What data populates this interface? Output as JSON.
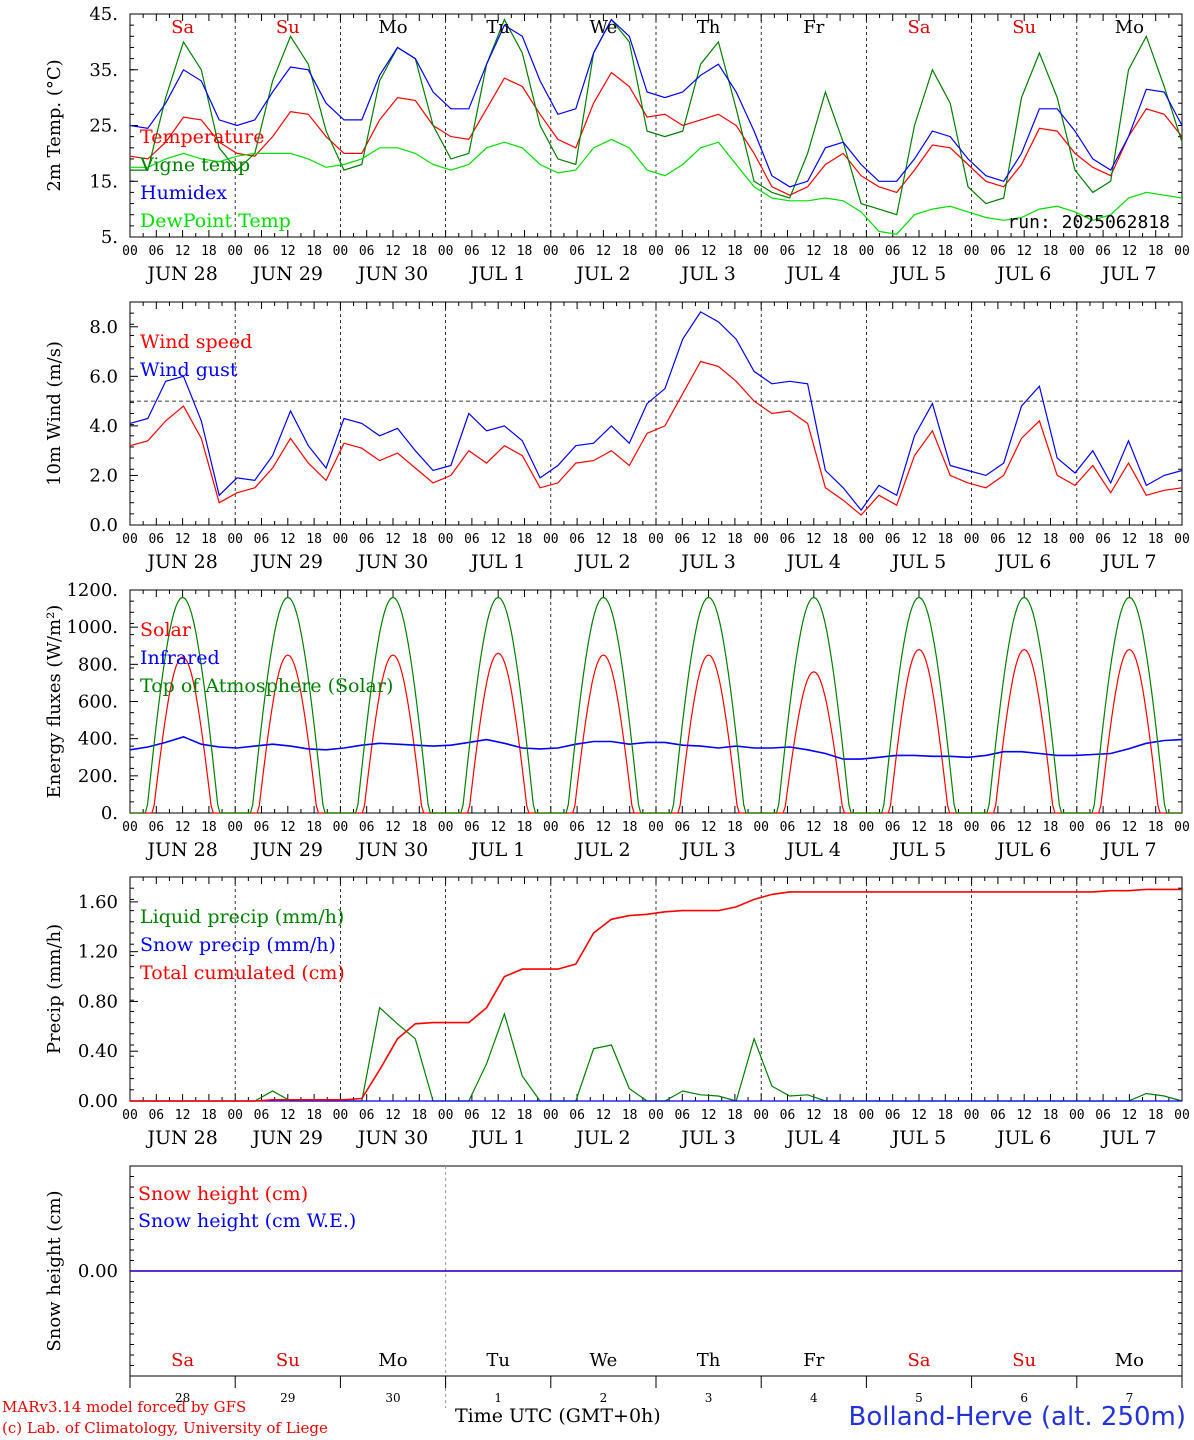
{
  "run_label": "run: 2025062818",
  "weekdays": [
    {
      "label": "Sa",
      "color": "#e00000"
    },
    {
      "label": "Su",
      "color": "#e00000"
    },
    {
      "label": "Mo",
      "color": "#000000"
    },
    {
      "label": "Tu",
      "color": "#000000"
    },
    {
      "label": "We",
      "color": "#000000"
    },
    {
      "label": "Th",
      "color": "#000000"
    },
    {
      "label": "Fr",
      "color": "#000000"
    },
    {
      "label": "Sa",
      "color": "#e00000"
    },
    {
      "label": "Su",
      "color": "#e00000"
    },
    {
      "label": "Mo",
      "color": "#000000"
    }
  ],
  "date_labels": [
    "JUN 28",
    "JUN 29",
    "JUN 30",
    "JUL  1",
    "JUL  2",
    "JUL  3",
    "JUL  4",
    "JUL  5",
    "JUL  6",
    "JUL  7"
  ],
  "hour_labels": [
    "00",
    "06",
    "12",
    "18"
  ],
  "bottom_day_numbers": [
    "28",
    "29",
    "30",
    "1",
    "2",
    "3",
    "4",
    "5",
    "6",
    "7"
  ],
  "footer": {
    "model": "MARv3.14 model forced by GFS",
    "lab": "(c) Lab. of Climatology, University of Liege",
    "xaxis": "Time UTC (GMT+0h)",
    "station": "Bolland-Herve (alt. 250m)"
  },
  "colors": {
    "red": "#ff0000",
    "green": "#008000",
    "blue": "#0000ff",
    "lightgreen": "#00e000"
  },
  "chart_data": [
    {
      "type": "line",
      "ylabel": "2m Temp. (°C)",
      "yticks": [
        "45.",
        "35.",
        "25.",
        "15.",
        "5."
      ],
      "ylim": [
        5,
        45
      ],
      "x_start": "2025-06-28 00:00",
      "x_step_hours": 6,
      "series": [
        {
          "name": "Temperature",
          "color": "#ff0000",
          "values": [
            19.5,
            19,
            22,
            26.5,
            26,
            22,
            20,
            19.5,
            23,
            27.5,
            27,
            23,
            20,
            20,
            26,
            30,
            29.5,
            25,
            23,
            22.5,
            28,
            33.5,
            32,
            27,
            22.5,
            21,
            29,
            34.5,
            32,
            26.5,
            27,
            25,
            26,
            27,
            25,
            20,
            14,
            12.5,
            14,
            18,
            20,
            16,
            14,
            13,
            17,
            21.5,
            21,
            18,
            15,
            14,
            18,
            24.5,
            24,
            20,
            17.5,
            16,
            23,
            28,
            27,
            23
          ]
        },
        {
          "name": "Vigne temp",
          "color": "#008000",
          "values": [
            17,
            17,
            30,
            40,
            35,
            21,
            17,
            20,
            33,
            41,
            36,
            24,
            17,
            18,
            33,
            39,
            37,
            25,
            19,
            20,
            36,
            44,
            38,
            25,
            19,
            18,
            38,
            44,
            40,
            24,
            23,
            24,
            36,
            40,
            28,
            15,
            13,
            12,
            20,
            31,
            22,
            11,
            10,
            9,
            25,
            35,
            29,
            14,
            11,
            12,
            30,
            38,
            30,
            17,
            13,
            15,
            35,
            41,
            32,
            22
          ]
        },
        {
          "name": "Humidex",
          "color": "#0000ff",
          "values": [
            25,
            24.5,
            29,
            35,
            33,
            26,
            25,
            26,
            31,
            35.5,
            35,
            29,
            26,
            26,
            34,
            39,
            37,
            31,
            28,
            28,
            36,
            43,
            41,
            33,
            27,
            28,
            38,
            44,
            41,
            31,
            30,
            31,
            34,
            36,
            31,
            24,
            16,
            14,
            15,
            21,
            22,
            18,
            15,
            15,
            19,
            24,
            23,
            19,
            16,
            15,
            20,
            28,
            28,
            24,
            19,
            17,
            23,
            31.5,
            31,
            25
          ]
        },
        {
          "name": "DewPoint Temp",
          "color": "#00e000",
          "values": [
            17.5,
            17.5,
            19,
            20,
            19,
            18.5,
            19.5,
            20,
            20,
            20,
            19,
            17.5,
            18,
            19,
            21,
            21,
            20,
            18,
            17,
            18,
            21,
            22,
            21,
            18,
            16.5,
            17,
            21,
            22.5,
            21,
            17,
            16,
            18,
            21,
            22,
            18,
            14,
            12,
            11.5,
            11.5,
            12,
            11.5,
            9.5,
            6,
            5.5,
            9,
            10,
            10.5,
            9.5,
            8.5,
            8,
            8.5,
            10,
            10.5,
            9.5,
            8,
            9,
            12,
            13,
            12.5,
            12
          ]
        }
      ]
    },
    {
      "type": "line",
      "ylabel": "10m Wind (m/s)",
      "yticks": [
        "8.0",
        "6.0",
        "4.0",
        "2.0",
        "0.0"
      ],
      "ylim": [
        0,
        9
      ],
      "reference_line": 5,
      "series": [
        {
          "name": "Wind speed",
          "color": "#ff0000",
          "values": [
            3.2,
            3.4,
            4.2,
            4.8,
            3.5,
            0.9,
            1.3,
            1.5,
            2.3,
            3.5,
            2.5,
            1.8,
            3.3,
            3.1,
            2.6,
            2.9,
            2.3,
            1.7,
            2.0,
            3.0,
            2.5,
            3.2,
            2.8,
            1.5,
            1.7,
            2.5,
            2.6,
            3.0,
            2.4,
            3.7,
            4.0,
            5.3,
            6.6,
            6.4,
            5.8,
            5.0,
            4.5,
            4.6,
            4.1,
            1.5,
            1.0,
            0.4,
            1.2,
            0.8,
            2.8,
            3.8,
            2.0,
            1.7,
            1.5,
            2.0,
            3.5,
            4.2,
            2.0,
            1.6,
            2.4,
            1.3,
            2.5,
            1.2,
            1.4,
            1.5
          ]
        },
        {
          "name": "Wind gust",
          "color": "#0000ff",
          "values": [
            4.1,
            4.3,
            5.8,
            6.0,
            4.2,
            1.2,
            1.9,
            1.8,
            2.8,
            4.6,
            3.2,
            2.3,
            4.3,
            4.1,
            3.6,
            3.9,
            3.0,
            2.2,
            2.4,
            4.5,
            3.8,
            4.0,
            3.4,
            1.9,
            2.4,
            3.2,
            3.3,
            4.0,
            3.3,
            4.9,
            5.5,
            7.5,
            8.6,
            8.2,
            7.5,
            6.2,
            5.7,
            5.8,
            5.7,
            2.2,
            1.5,
            0.6,
            1.6,
            1.2,
            3.6,
            4.9,
            2.4,
            2.2,
            2.0,
            2.5,
            4.8,
            5.6,
            2.7,
            2.1,
            3.0,
            1.7,
            3.4,
            1.6,
            2.0,
            2.2
          ]
        }
      ]
    },
    {
      "type": "line",
      "ylabel": "Energy fluxes (W/m²)",
      "yticks": [
        "1200.",
        "1000.",
        "800.",
        "600.",
        "400.",
        "200.",
        "0."
      ],
      "ylim": [
        0,
        1200
      ],
      "series": [
        {
          "name": "Solar",
          "color": "#ff0000",
          "peaks": [
            840,
            850,
            850,
            860,
            850,
            850,
            760,
            880,
            880,
            880
          ]
        },
        {
          "name": "Infrared",
          "color": "#0000ff",
          "values": [
            340,
            355,
            380,
            410,
            370,
            355,
            350,
            360,
            370,
            360,
            345,
            340,
            350,
            365,
            375,
            370,
            365,
            360,
            365,
            380,
            395,
            375,
            350,
            345,
            350,
            370,
            385,
            385,
            370,
            380,
            380,
            365,
            360,
            350,
            360,
            350,
            350,
            355,
            340,
            320,
            290,
            290,
            300,
            310,
            310,
            305,
            305,
            300,
            310,
            330,
            330,
            320,
            310,
            310,
            315,
            320,
            345,
            375,
            390,
            395
          ]
        },
        {
          "name": "Top of Atmosphere (Solar)",
          "color": "#008000",
          "peak": 1160
        }
      ]
    },
    {
      "type": "line",
      "ylabel": "Precip (mm/h)",
      "yticks": [
        "1.60",
        "1.20",
        "0.80",
        "0.40",
        "0.00"
      ],
      "ylim": [
        0,
        1.8
      ],
      "series": [
        {
          "name": "Liquid precip (mm/h)",
          "color": "#008000",
          "values": [
            0,
            0,
            0,
            0,
            0,
            0,
            0,
            0,
            0.08,
            0,
            0,
            0,
            0,
            0,
            0.75,
            0.62,
            0.5,
            0,
            0,
            0,
            0.3,
            0.7,
            0.2,
            0,
            0,
            0,
            0.42,
            0.45,
            0.1,
            0,
            0,
            0.08,
            0.05,
            0.04,
            0,
            0.5,
            0.12,
            0.04,
            0.05,
            0,
            0,
            0,
            0,
            0,
            0,
            0,
            0,
            0,
            0,
            0,
            0,
            0,
            0,
            0,
            0,
            0,
            0,
            0.06,
            0.04,
            0
          ]
        },
        {
          "name": "Snow precip (mm/h)",
          "color": "#0000ff",
          "values": [
            0,
            0,
            0,
            0,
            0,
            0,
            0,
            0,
            0,
            0,
            0,
            0,
            0,
            0,
            0,
            0,
            0,
            0,
            0,
            0,
            0,
            0,
            0,
            0,
            0,
            0,
            0,
            0,
            0,
            0,
            0,
            0,
            0,
            0,
            0,
            0,
            0,
            0,
            0,
            0,
            0,
            0,
            0,
            0,
            0,
            0,
            0,
            0,
            0,
            0,
            0,
            0,
            0,
            0,
            0,
            0,
            0,
            0,
            0,
            0
          ]
        },
        {
          "name": "Total cumulated (cm)",
          "color": "#ff0000",
          "values": [
            0,
            0,
            0,
            0,
            0,
            0,
            0,
            0,
            0.01,
            0.01,
            0.01,
            0.01,
            0.01,
            0.02,
            0.25,
            0.5,
            0.62,
            0.63,
            0.63,
            0.63,
            0.75,
            1.0,
            1.06,
            1.06,
            1.06,
            1.1,
            1.35,
            1.46,
            1.49,
            1.5,
            1.52,
            1.53,
            1.53,
            1.53,
            1.56,
            1.62,
            1.66,
            1.68,
            1.68,
            1.68,
            1.68,
            1.68,
            1.68,
            1.68,
            1.68,
            1.68,
            1.68,
            1.68,
            1.68,
            1.68,
            1.68,
            1.68,
            1.68,
            1.68,
            1.68,
            1.69,
            1.69,
            1.7,
            1.7,
            1.7
          ]
        }
      ]
    },
    {
      "type": "line",
      "ylabel": "Snow height (cm)",
      "yticks": [
        "0.00"
      ],
      "ylim": [
        -1,
        1
      ],
      "series": [
        {
          "name": "Snow height (cm)",
          "color": "#ff0000",
          "values": [
            0,
            0
          ]
        },
        {
          "name": "Snow height (cm W.E.)",
          "color": "#0000ff",
          "values": [
            0,
            0
          ]
        }
      ]
    }
  ]
}
